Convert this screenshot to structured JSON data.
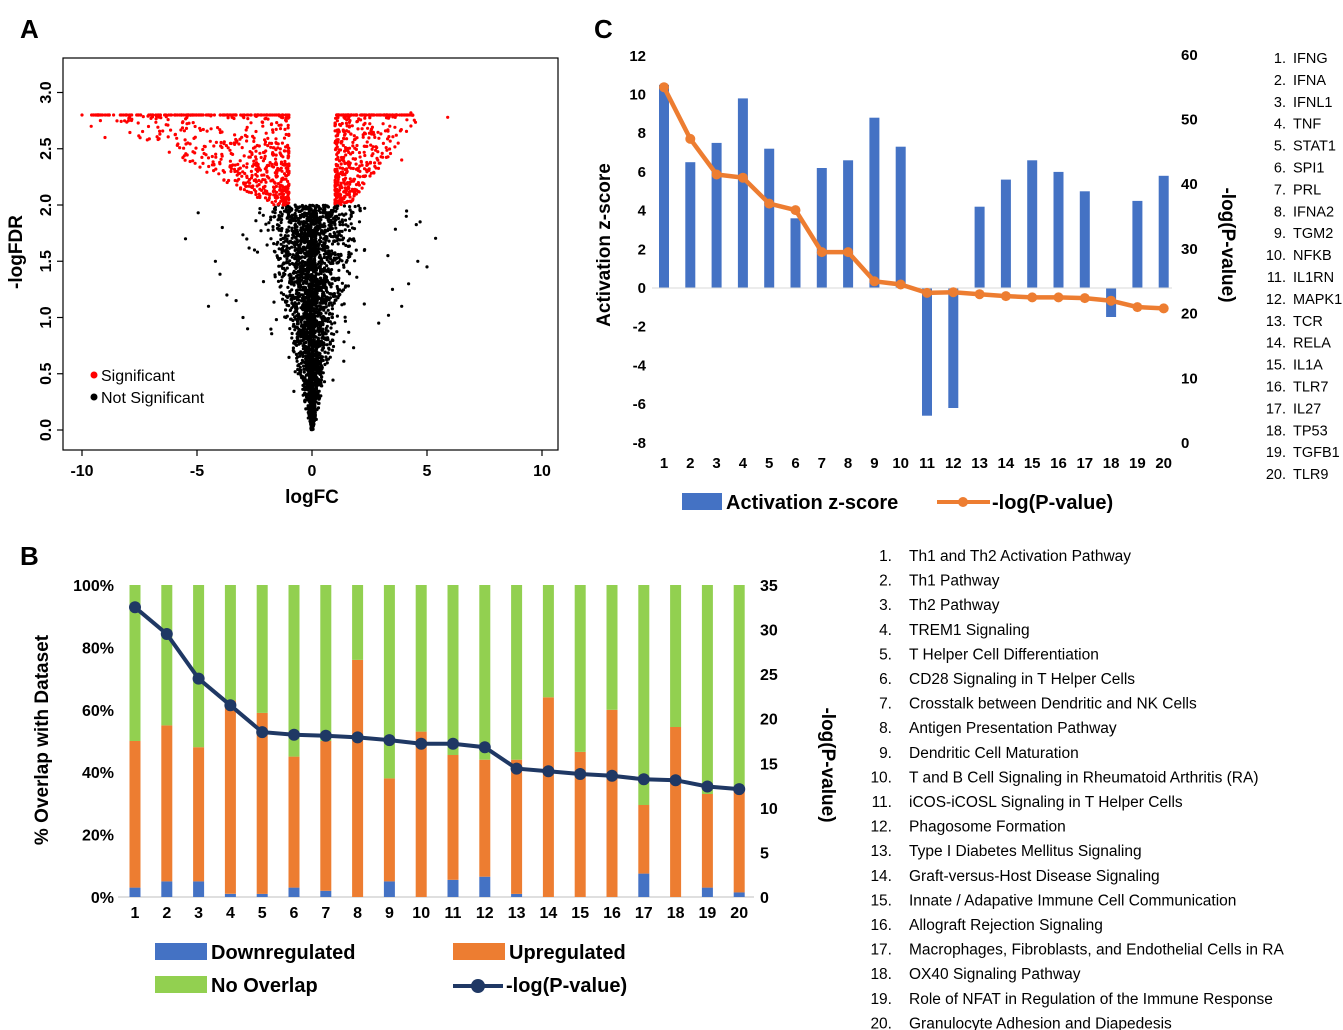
{
  "panels": {
    "A": "A",
    "B": "B",
    "C": "C"
  },
  "chart_data": [
    {
      "panel": "A",
      "type": "scatter",
      "title": "",
      "xlabel": "logFC",
      "ylabel": "-logFDR",
      "xlim": [
        -10.5,
        10.5
      ],
      "ylim": [
        -0.1,
        3.1
      ],
      "xticks": [
        "-10",
        "-5",
        "0",
        "5",
        "10"
      ],
      "yticks": [
        "0.0",
        "0.5",
        "1.0",
        "1.5",
        "2.0",
        "2.5",
        "3.0"
      ],
      "legend": {
        "position": "bottom-left",
        "entries": [
          "Significant",
          "Not Significant"
        ]
      },
      "colors": {
        "significant": "#ff0000",
        "not_significant": "#000000"
      },
      "series": [
        {
          "name": "Significant",
          "description_points": "points with |logFC| > 1 and -logFDR > 2, capped at 2.8",
          "sample_points": [
            [
              -10,
              2.8
            ],
            [
              -9.5,
              2.7
            ],
            [
              -8.5,
              2.8
            ],
            [
              -8,
              2.6
            ],
            [
              -7,
              2.75
            ],
            [
              -6,
              2.5
            ],
            [
              -5,
              2.4
            ],
            [
              -4,
              2.3
            ],
            [
              -3.5,
              2.1
            ],
            [
              -3,
              2.6
            ],
            [
              -2,
              2.2
            ],
            [
              -1.5,
              2.5
            ],
            [
              1.5,
              2.4
            ],
            [
              2,
              2.7
            ],
            [
              2.5,
              2.2
            ],
            [
              3,
              2.5
            ],
            [
              3.5,
              2.3
            ],
            [
              4,
              2.8
            ],
            [
              4.5,
              2.5
            ],
            [
              6,
              2.78
            ]
          ]
        },
        {
          "name": "Not Significant",
          "description_points": "points near logFC 0 forming a V shape",
          "sample_points": [
            [
              0,
              0.0
            ],
            [
              -0.5,
              0.5
            ],
            [
              0.5,
              0.5
            ],
            [
              -1,
              1.0
            ],
            [
              1,
              1.0
            ],
            [
              -2,
              1.5
            ],
            [
              2,
              1.5
            ],
            [
              -3,
              1.3
            ],
            [
              3,
              1.2
            ],
            [
              -4,
              1.1
            ],
            [
              4,
              1.2
            ],
            [
              -4.2,
              1.5
            ],
            [
              5,
              1.4
            ],
            [
              -5,
              1.0
            ],
            [
              5.3,
              1.5
            ]
          ]
        }
      ]
    },
    {
      "panel": "B",
      "type": "bar",
      "stacked": true,
      "title": "",
      "xlabel": "",
      "ylabel": "% Overlap with Dataset",
      "y2label": "-log(P-value)",
      "categories": [
        "1",
        "2",
        "3",
        "4",
        "5",
        "6",
        "7",
        "8",
        "9",
        "10",
        "11",
        "12",
        "13",
        "14",
        "15",
        "16",
        "17",
        "18",
        "19",
        "20"
      ],
      "yticks": [
        "0%",
        "20%",
        "40%",
        "60%",
        "80%",
        "100%"
      ],
      "y2ticks": [
        "0",
        "5",
        "10",
        "15",
        "20",
        "25",
        "30",
        "35"
      ],
      "ylim": [
        0,
        100
      ],
      "y2lim": [
        0,
        35
      ],
      "series": [
        {
          "name": "Downregulated",
          "color": "#4472c4",
          "values": [
            3,
            5,
            5,
            1,
            1,
            3,
            2,
            0,
            5,
            0,
            5.5,
            6.5,
            1,
            0,
            0,
            0,
            7.5,
            0,
            3,
            1.5
          ]
        },
        {
          "name": "Upregulated",
          "color": "#ed7d31",
          "values": [
            47,
            50,
            43,
            62,
            58,
            42,
            48,
            76,
            33,
            53,
            40,
            37.5,
            43,
            64,
            46.5,
            60,
            22,
            54.5,
            30,
            33
          ]
        },
        {
          "name": "No Overlap",
          "color": "#92d050",
          "values": [
            50,
            45,
            52,
            37,
            41,
            55,
            50,
            24,
            62,
            47,
            54.5,
            56,
            56,
            36,
            53.5,
            40,
            70.5,
            45.5,
            67,
            65.5
          ]
        },
        {
          "name": "-log(P-value)",
          "type": "line",
          "axis": "y2",
          "color": "#1f3864",
          "values": [
            32.5,
            29.5,
            24.5,
            21.5,
            18.5,
            18.2,
            18.1,
            17.9,
            17.6,
            17.2,
            17.2,
            16.8,
            14.4,
            14.1,
            13.8,
            13.6,
            13.2,
            13.1,
            12.4,
            12.1
          ]
        }
      ],
      "legend": {
        "position": "bottom"
      },
      "pathways": [
        "Th1 and Th2 Activation Pathway",
        "Th1 Pathway",
        "Th2 Pathway",
        "TREM1 Signaling",
        "T Helper Cell Differentiation",
        "CD28 Signaling in T Helper Cells",
        "Crosstalk between Dendritic and NK Cells",
        "Antigen Presentation Pathway",
        "Dendritic Cell Maturation",
        "T and B Cell Signaling in Rheumatoid Arthritis (RA)",
        "iCOS-iCOSL Signaling in T Helper Cells",
        "Phagosome Formation",
        "Type I Diabetes Mellitus Signaling",
        "Graft-versus-Host Disease Signaling",
        "Innate / Adapative Immune Cell Communication",
        "Allograft Rejection Signaling",
        "Macrophages, Fibroblasts, and Endothelial Cells in RA",
        "OX40 Signaling Pathway",
        "Role of NFAT in Regulation of the Immune Response",
        "Granulocyte Adhesion and Diapedesis"
      ]
    },
    {
      "panel": "C",
      "type": "bar",
      "title": "",
      "xlabel": "",
      "ylabel": "Activation z-score",
      "y2label": "-log(P-value)",
      "categories": [
        "1",
        "2",
        "3",
        "4",
        "5",
        "6",
        "7",
        "8",
        "9",
        "10",
        "11",
        "12",
        "13",
        "14",
        "15",
        "16",
        "17",
        "18",
        "19",
        "20"
      ],
      "yticks": [
        "-8",
        "-6",
        "-4",
        "-2",
        "0",
        "2",
        "4",
        "6",
        "8",
        "10",
        "12"
      ],
      "y2ticks": [
        "0",
        "10",
        "20",
        "30",
        "40",
        "50",
        "60"
      ],
      "ylim": [
        -8,
        12
      ],
      "y2lim": [
        0,
        60
      ],
      "series": [
        {
          "name": "Activation z-score",
          "color": "#4472c4",
          "values": [
            10.5,
            6.5,
            7.5,
            9.8,
            7.2,
            3.6,
            6.2,
            6.6,
            8.8,
            7.3,
            -6.6,
            -6.2,
            4.2,
            5.6,
            6.6,
            6.0,
            5.0,
            -1.5,
            4.5,
            5.8
          ]
        },
        {
          "name": "-log(P-value)",
          "type": "line",
          "axis": "y2",
          "color": "#ed7d31",
          "values": [
            55,
            47,
            41.5,
            41,
            37,
            36,
            29.5,
            29.5,
            25,
            24.5,
            23.2,
            23.3,
            23,
            22.7,
            22.5,
            22.5,
            22.4,
            22,
            21,
            20.8
          ]
        }
      ],
      "legend": {
        "position": "bottom"
      },
      "regulators": [
        "IFNG",
        "IFNA",
        "IFNL1",
        "TNF",
        "STAT1",
        "SPI1",
        "PRL",
        "IFNA2",
        "TGM2",
        "NFKB",
        "IL1RN",
        "MAPK1",
        "TCR",
        "RELA",
        "IL1A",
        "TLR7",
        "IL27",
        "TP53",
        "TGFB1",
        "TLR9"
      ]
    }
  ]
}
